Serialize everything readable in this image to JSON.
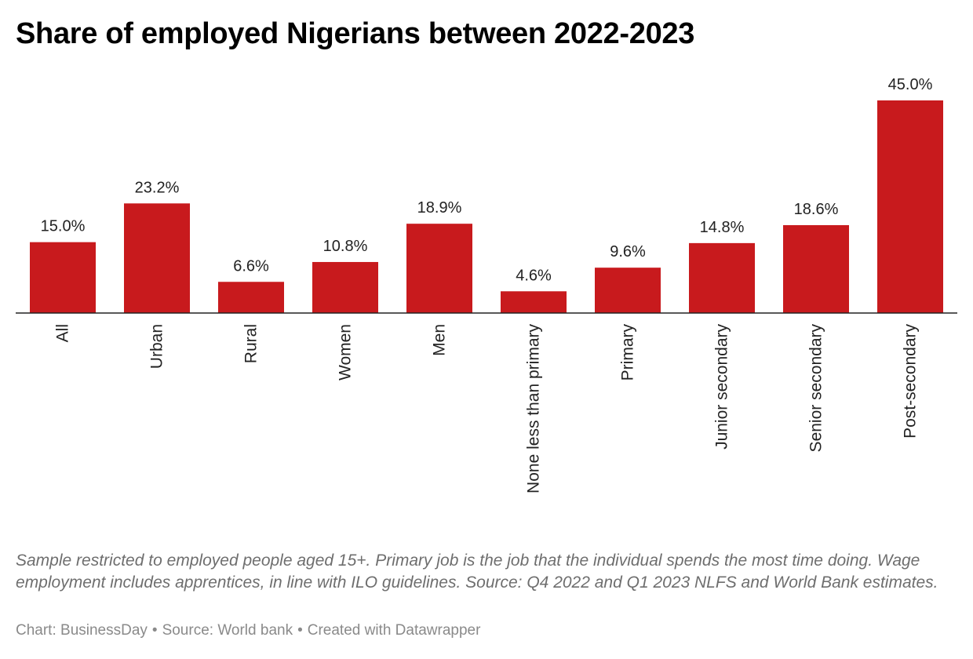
{
  "chart_data": {
    "type": "bar",
    "title": "Share of employed Nigerians between 2022-2023",
    "categories": [
      "All",
      "Urban",
      "Rural",
      "Women",
      "Men",
      "None less than primary",
      "Primary",
      "Junior secondary",
      "Senior secondary",
      "Post-secondary"
    ],
    "values": [
      15.0,
      23.2,
      6.6,
      10.8,
      18.9,
      4.6,
      9.6,
      14.8,
      18.6,
      45.0
    ],
    "data_labels": [
      "15.0%",
      "23.2%",
      "6.6%",
      "10.8%",
      "18.9%",
      "4.6%",
      "9.6%",
      "14.8%",
      "18.6%",
      "45.0%"
    ],
    "ylim": [
      0,
      45
    ],
    "grid": false,
    "legend": "none",
    "bar_color": "#c81a1d"
  },
  "notes": "Sample restricted to employed people aged 15+. Primary job is the job that the individual spends the most time doing. Wage employment includes apprentices, in line with ILO guidelines. Source: Q4 2022 and Q1 2023 NLFS and World Bank estimates.",
  "footer": {
    "chart_credit": "Chart: BusinessDay",
    "source": "Source: World bank",
    "created_with": "Created with Datawrapper"
  }
}
